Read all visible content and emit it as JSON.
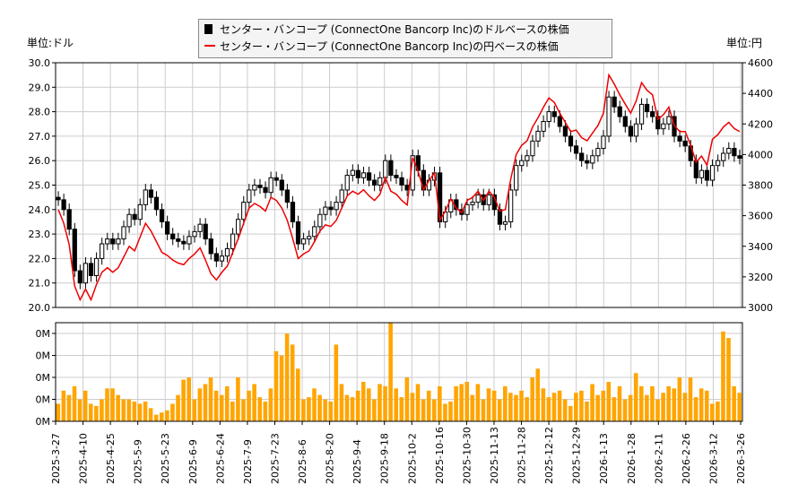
{
  "legend": {
    "usd_label": "センター・バンコープ (ConnectOne Bancorp Inc)のドルベースの株価",
    "jpy_label": "センター・バンコープ (ConnectOne Bancorp Inc)の円ベースの株価"
  },
  "units": {
    "left": "単位:ドル",
    "right": "単位:円"
  },
  "colors": {
    "usd": "#000000",
    "jpy": "#ee0000",
    "volume": "#ffa500",
    "grid": "#cccccc"
  },
  "chart_data": [
    {
      "type": "candlestick+line",
      "x_tick_labels": [
        "2025-3-27",
        "2025-4-10",
        "2025-4-25",
        "2025-5-9",
        "2025-5-23",
        "2025-6-9",
        "2025-6-24",
        "2025-7-9",
        "2025-7-23",
        "2025-8-6",
        "2025-8-20",
        "2025-9-4",
        "2025-9-18",
        "2025-10-2",
        "2025-10-16",
        "2025-10-30",
        "2025-11-13",
        "2025-11-28",
        "2025-12-12",
        "2025-12-29",
        "2026-1-13",
        "2026-1-28",
        "2026-2-11",
        "2026-2-26",
        "2026-3-12",
        "2026-3-26"
      ],
      "y_left": {
        "range": [
          20.0,
          30.0
        ],
        "ticks": [
          "20.0",
          "21.0",
          "22.0",
          "23.0",
          "24.0",
          "25.0",
          "26.0",
          "27.0",
          "28.0",
          "29.0",
          "30.0"
        ]
      },
      "y_right": {
        "range": [
          3000,
          4600
        ],
        "ticks": [
          "3000",
          "3200",
          "3400",
          "3600",
          "3800",
          "4000",
          "4200",
          "4400",
          "4600"
        ]
      },
      "grid": true,
      "legend_placement": "top-center",
      "usd_close": [
        24.4,
        24.0,
        23.2,
        21.5,
        21.0,
        21.8,
        21.3,
        22.0,
        22.6,
        22.8,
        22.6,
        22.8,
        23.3,
        23.8,
        23.6,
        24.2,
        24.8,
        24.5,
        24.0,
        23.5,
        23.0,
        22.8,
        22.7,
        22.6,
        22.9,
        23.1,
        23.4,
        22.8,
        22.2,
        21.9,
        22.1,
        22.4,
        23.0,
        23.6,
        24.3,
        24.8,
        25.0,
        24.9,
        24.7,
        25.3,
        25.2,
        24.8,
        24.3,
        23.5,
        22.6,
        22.8,
        22.9,
        23.3,
        23.8,
        24.1,
        24.0,
        24.3,
        24.8,
        25.4,
        25.6,
        25.3,
        25.5,
        25.2,
        25.0,
        25.3,
        26.0,
        25.4,
        25.3,
        25.0,
        24.8,
        26.2,
        25.6,
        24.8,
        25.2,
        25.5,
        23.5,
        23.9,
        24.4,
        24.0,
        23.8,
        24.2,
        24.3,
        24.6,
        24.2,
        24.6,
        24.0,
        23.4,
        23.5,
        24.8,
        25.8,
        26.0,
        26.2,
        26.8,
        27.2,
        27.6,
        28.0,
        27.8,
        27.4,
        27.0,
        26.6,
        26.3,
        26.0,
        25.9,
        26.2,
        26.5,
        27.0,
        28.6,
        28.2,
        27.8,
        27.4,
        27.0,
        27.5,
        28.3,
        28.0,
        27.8,
        27.3,
        27.5,
        27.8,
        27.0,
        26.8,
        26.6,
        26.0,
        25.3,
        25.6,
        25.2,
        25.8,
        26.0,
        26.3,
        26.5,
        26.2,
        26.1
      ],
      "jpy_close": [
        3640,
        3550,
        3410,
        3140,
        3050,
        3120,
        3050,
        3150,
        3230,
        3260,
        3230,
        3260,
        3330,
        3400,
        3370,
        3460,
        3550,
        3500,
        3430,
        3360,
        3340,
        3310,
        3290,
        3280,
        3320,
        3350,
        3390,
        3310,
        3220,
        3180,
        3230,
        3270,
        3360,
        3450,
        3550,
        3650,
        3680,
        3660,
        3630,
        3720,
        3700,
        3650,
        3570,
        3450,
        3320,
        3350,
        3370,
        3430,
        3500,
        3540,
        3530,
        3570,
        3650,
        3730,
        3760,
        3740,
        3770,
        3730,
        3700,
        3740,
        3850,
        3760,
        3740,
        3700,
        3670,
        3980,
        3890,
        3770,
        3830,
        3880,
        3570,
        3630,
        3710,
        3650,
        3620,
        3700,
        3720,
        3760,
        3700,
        3760,
        3720,
        3630,
        3640,
        3840,
        4000,
        4060,
        4090,
        4180,
        4240,
        4310,
        4370,
        4340,
        4270,
        4210,
        4150,
        4160,
        4110,
        4090,
        4140,
        4190,
        4270,
        4520,
        4460,
        4390,
        4330,
        4270,
        4350,
        4470,
        4420,
        4390,
        4230,
        4260,
        4310,
        4190,
        4150,
        4150,
        4060,
        3950,
        3990,
        3930,
        4100,
        4130,
        4180,
        4210,
        4170,
        4150
      ]
    },
    {
      "type": "bar",
      "y_tick_labels": [
        "0M",
        "0M",
        "0M",
        "0M",
        "0M"
      ],
      "y_range": [
        0,
        0.45
      ],
      "volume": [
        0.08,
        0.14,
        0.12,
        0.16,
        0.1,
        0.14,
        0.08,
        0.07,
        0.1,
        0.15,
        0.15,
        0.12,
        0.1,
        0.1,
        0.09,
        0.08,
        0.09,
        0.06,
        0.03,
        0.04,
        0.05,
        0.08,
        0.12,
        0.19,
        0.2,
        0.1,
        0.15,
        0.17,
        0.2,
        0.14,
        0.12,
        0.16,
        0.09,
        0.2,
        0.1,
        0.14,
        0.17,
        0.11,
        0.09,
        0.15,
        0.32,
        0.3,
        0.4,
        0.35,
        0.24,
        0.1,
        0.11,
        0.15,
        0.12,
        0.1,
        0.09,
        0.35,
        0.17,
        0.12,
        0.11,
        0.14,
        0.18,
        0.15,
        0.1,
        0.17,
        0.16,
        0.45,
        0.15,
        0.11,
        0.2,
        0.13,
        0.17,
        0.1,
        0.14,
        0.1,
        0.16,
        0.08,
        0.09,
        0.16,
        0.17,
        0.18,
        0.12,
        0.17,
        0.1,
        0.15,
        0.14,
        0.1,
        0.16,
        0.13,
        0.12,
        0.14,
        0.11,
        0.2,
        0.24,
        0.15,
        0.11,
        0.13,
        0.14,
        0.1,
        0.07,
        0.13,
        0.14,
        0.09,
        0.17,
        0.12,
        0.14,
        0.18,
        0.11,
        0.16,
        0.1,
        0.12,
        0.22,
        0.16,
        0.12,
        0.16,
        0.1,
        0.13,
        0.16,
        0.15,
        0.2,
        0.13,
        0.2,
        0.11,
        0.15,
        0.14,
        0.08,
        0.09,
        0.41,
        0.38,
        0.16,
        0.13
      ]
    }
  ]
}
